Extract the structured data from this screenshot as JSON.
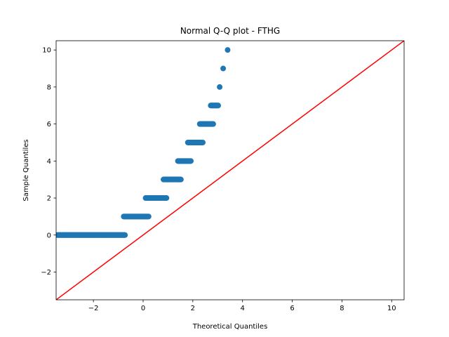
{
  "chart_data": {
    "type": "scatter",
    "title": "Normal Q-Q plot - FTHG",
    "xlabel": "Theoretical Quantiles",
    "ylabel": "Sample Quantiles",
    "xlim": [
      -3.5,
      10.5
    ],
    "ylim": [
      -3.5,
      10.5
    ],
    "x_ticks": [
      -2,
      0,
      2,
      4,
      6,
      8,
      10
    ],
    "y_ticks": [
      -2,
      0,
      2,
      4,
      6,
      8,
      10
    ],
    "x_tick_labels": [
      "−2",
      "0",
      "2",
      "4",
      "6",
      "8",
      "10"
    ],
    "y_tick_labels": [
      "−2",
      "0",
      "2",
      "4",
      "6",
      "8",
      "10"
    ],
    "grid": false,
    "point_color": "#1f77b4",
    "line_color": "#ff0000",
    "segments": [
      {
        "y": 0,
        "x_from": -3.45,
        "x_to": -0.72
      },
      {
        "y": 1,
        "x_from": -0.78,
        "x_to": 0.22
      },
      {
        "y": 2,
        "x_from": 0.1,
        "x_to": 0.95
      },
      {
        "y": 3,
        "x_from": 0.82,
        "x_to": 1.52
      },
      {
        "y": 4,
        "x_from": 1.4,
        "x_to": 1.92
      },
      {
        "y": 5,
        "x_from": 1.8,
        "x_to": 2.4
      },
      {
        "y": 6,
        "x_from": 2.28,
        "x_to": 2.82
      },
      {
        "y": 7,
        "x_from": 2.72,
        "x_to": 3.02
      }
    ],
    "points": [
      {
        "x": 3.08,
        "y": 8
      },
      {
        "x": 3.22,
        "y": 9
      },
      {
        "x": 3.4,
        "y": 10
      }
    ],
    "reference_line": {
      "slope": 1,
      "intercept": 0
    }
  }
}
